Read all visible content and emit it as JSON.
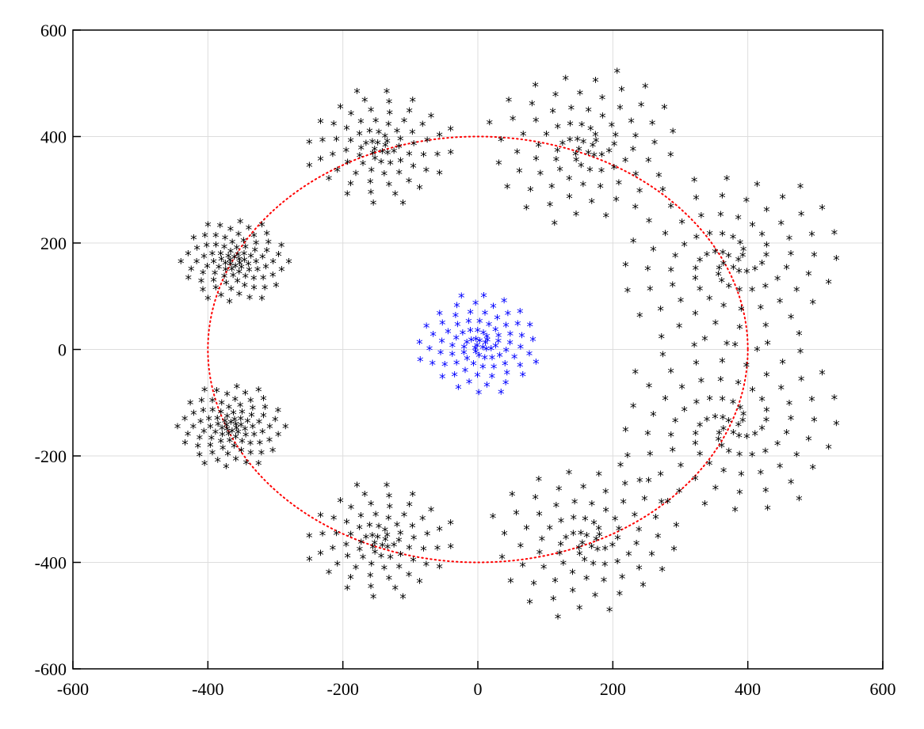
{
  "chart_data": {
    "type": "scatter",
    "title": "",
    "xlabel": "",
    "ylabel": "",
    "xlim": [
      -600,
      600
    ],
    "ylim": [
      -600,
      600
    ],
    "grid": true,
    "xticks": [
      -600,
      -400,
      -200,
      0,
      200,
      400,
      600
    ],
    "yticks": [
      -600,
      -400,
      -200,
      0,
      200,
      400,
      600
    ],
    "xtick_labels": [
      "-600",
      "-400",
      "-200",
      "0",
      "200",
      "400",
      "600"
    ],
    "ytick_labels": [
      "-600",
      "-400",
      "-200",
      "0",
      "200",
      "400",
      "600"
    ],
    "marker": "*",
    "colors": {
      "center_cluster": "#0000ff",
      "orbit_clusters": "#000000",
      "orbit_path": "#ff0000",
      "grid": "#dddddd"
    },
    "orbit_circle": {
      "center": [
        0,
        0
      ],
      "radius": 400,
      "style": "dotted",
      "color": "#ff0000"
    },
    "central_spiral": {
      "center": [
        5,
        10
      ],
      "radius": 95,
      "points": 90,
      "arms": 4,
      "twist": 2.6,
      "color": "#0000ff"
    },
    "spirals": [
      {
        "center": [
          -360,
          165
        ],
        "radius": 80,
        "points": 90,
        "arms": 6,
        "twist": 3.0
      },
      {
        "center": [
          -145,
          380
        ],
        "radius": 110,
        "points": 80,
        "arms": 4,
        "twist": 2.6
      },
      {
        "center": [
          160,
          380
        ],
        "radius": 150,
        "points": 85,
        "arms": 4,
        "twist": 2.4
      },
      {
        "center": [
          375,
          165
        ],
        "radius": 175,
        "points": 95,
        "arms": 4,
        "twist": 2.3
      },
      {
        "center": [
          375,
          -145
        ],
        "radius": 175,
        "points": 95,
        "arms": 4,
        "twist": 2.3
      },
      {
        "center": [
          165,
          -360
        ],
        "radius": 150,
        "points": 85,
        "arms": 4,
        "twist": 2.4
      },
      {
        "center": [
          -145,
          -360
        ],
        "radius": 110,
        "points": 80,
        "arms": 4,
        "twist": 2.6
      },
      {
        "center": [
          -365,
          -145
        ],
        "radius": 80,
        "points": 90,
        "arms": 6,
        "twist": 3.0
      }
    ]
  }
}
